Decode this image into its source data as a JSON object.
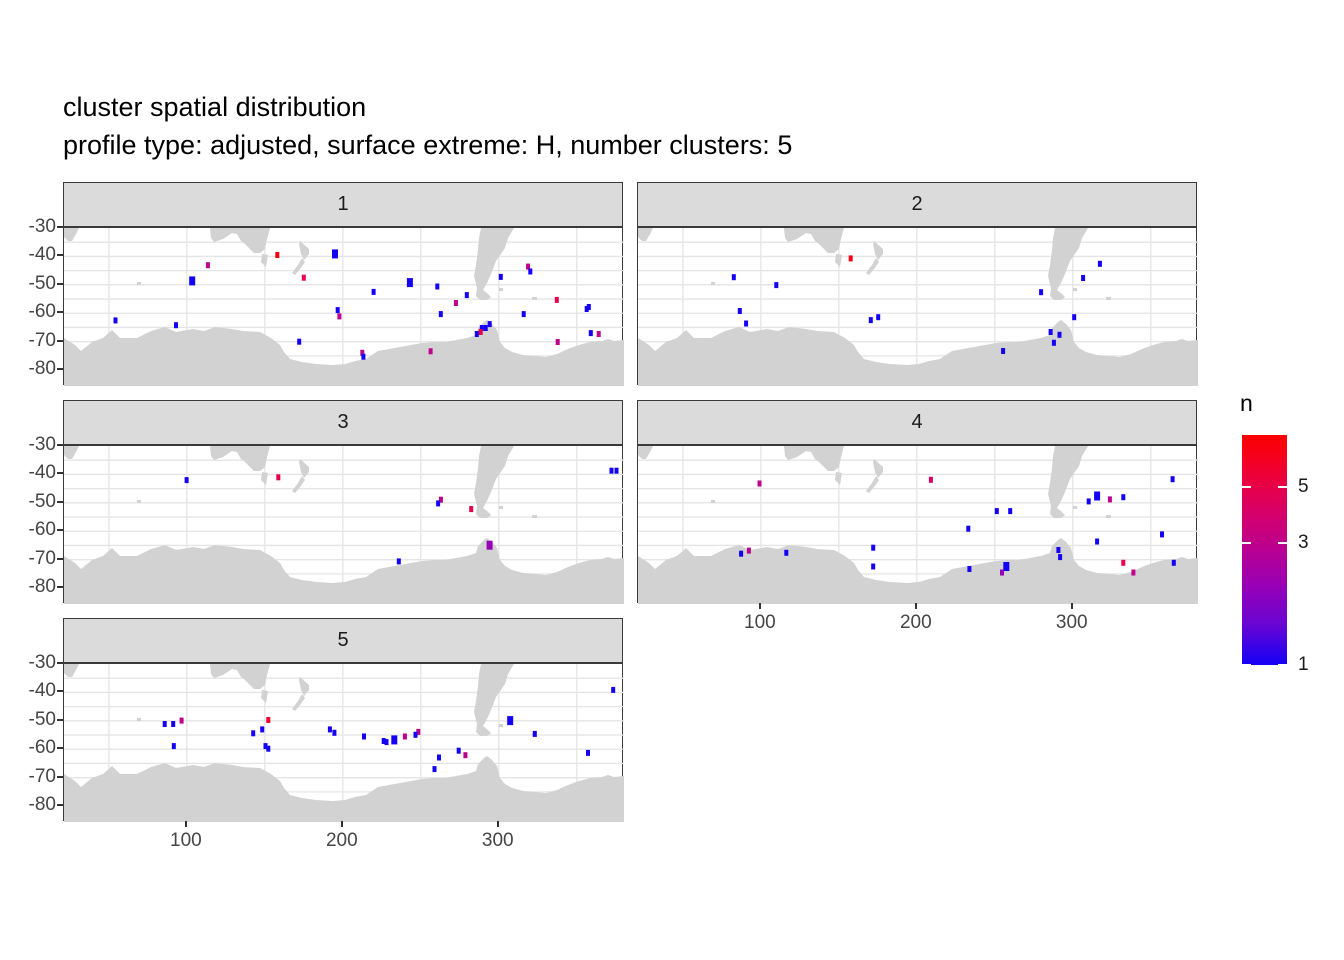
{
  "title": "cluster spatial distribution",
  "subtitle": "profile type: adjusted, surface extreme: H, number clusters: 5",
  "colors": {
    "land": "#D2D2D2",
    "strip_bg": "#DBDBDB",
    "grid": "#E5E5E5",
    "panel_border": "#3a3a3a",
    "axis_text": "#454545",
    "gradient_stops": [
      [
        0,
        "#1400F5"
      ],
      [
        0.18,
        "#6A05D2"
      ],
      [
        0.35,
        "#9900B4"
      ],
      [
        0.5,
        "#B80092"
      ],
      [
        0.65,
        "#D4006C"
      ],
      [
        0.78,
        "#E80048"
      ],
      [
        0.9,
        "#F5001F"
      ],
      [
        1,
        "#FB0000"
      ]
    ]
  },
  "axes": {
    "x": {
      "tick_labels": [
        "100",
        "200",
        "300"
      ],
      "tick_values": [
        100,
        200,
        300
      ],
      "range": [
        21.2,
        380.3
      ],
      "grid_values": [
        50,
        100,
        150,
        200,
        250,
        300,
        350
      ]
    },
    "y": {
      "tick_labels": [
        "-30",
        "-40",
        "-50",
        "-60",
        "-70",
        "-80"
      ],
      "tick_values": [
        -30,
        -40,
        -50,
        -60,
        -70,
        -80
      ],
      "range": [
        -30,
        -85.6
      ],
      "grid_values": [
        -35,
        -40,
        -45,
        -50,
        -55,
        -60,
        -65,
        -70,
        -75,
        -80,
        -85
      ]
    }
  },
  "legend": {
    "title": "n",
    "ticks": [
      {
        "label": "5",
        "value": 5
      },
      {
        "label": "3",
        "value": 3
      },
      {
        "label": "1",
        "value": 1
      }
    ],
    "scale": "log",
    "domain": [
      1,
      8
    ]
  },
  "chart_data": {
    "type": "scatter",
    "note": "faceted map scatter; lon 20-380, lat -30 to -85, point value n colored blue(1) to red",
    "facets": [
      {
        "label": "1",
        "points": [
          [
            158,
            -39.5,
            7
          ],
          [
            195,
            -39.1,
            1,
            2
          ],
          [
            113.5,
            -43.1,
            3
          ],
          [
            175,
            -47.5,
            5
          ],
          [
            103.4,
            -48.6,
            1,
            2
          ],
          [
            243,
            -49.2,
            1,
            2
          ],
          [
            260.6,
            -50.6,
            1
          ],
          [
            219.7,
            -52.5,
            1
          ],
          [
            196.7,
            -58.9,
            1
          ],
          [
            197.8,
            -61.1,
            3
          ],
          [
            54.2,
            -62.5,
            1
          ],
          [
            93,
            -64.2,
            1
          ],
          [
            172,
            -70,
            1
          ],
          [
            212.5,
            -73.9,
            3
          ],
          [
            213.2,
            -75.3,
            1
          ],
          [
            272.5,
            -56.4,
            3
          ],
          [
            262.8,
            -60.3,
            1
          ],
          [
            256.3,
            -73.4,
            3
          ],
          [
            301.3,
            -47.2,
            1
          ],
          [
            279.5,
            -53.6,
            1
          ],
          [
            337.2,
            -55.3,
            5
          ],
          [
            356.4,
            -58.5,
            1
          ],
          [
            357.7,
            -57.8,
            1
          ],
          [
            316,
            -60.3,
            1
          ],
          [
            294.2,
            -63.8,
            1
          ],
          [
            289.1,
            -65.2,
            1
          ],
          [
            291.6,
            -65.2,
            1
          ],
          [
            288.4,
            -66.6,
            5
          ],
          [
            285.9,
            -67.3,
            1
          ],
          [
            359,
            -67,
            1
          ],
          [
            364.1,
            -67.3,
            3
          ],
          [
            337.8,
            -70.1,
            3
          ],
          [
            318.8,
            -43.6,
            3
          ],
          [
            320.2,
            -45.3,
            1
          ]
        ]
      },
      {
        "label": "2",
        "points": [
          [
            82.6,
            -47.3,
            1
          ],
          [
            109.9,
            -50.1,
            1
          ],
          [
            157.6,
            -40.7,
            7
          ],
          [
            86.5,
            -59.2,
            1
          ],
          [
            90.5,
            -63.6,
            1
          ],
          [
            170.5,
            -62.4,
            1
          ],
          [
            175.2,
            -61.4,
            1
          ],
          [
            279.7,
            -52.6,
            1
          ],
          [
            306.6,
            -47.6,
            1
          ],
          [
            317.4,
            -42.6,
            1
          ],
          [
            300.9,
            -61.4,
            1
          ],
          [
            285.8,
            -66.6,
            1
          ],
          [
            291.5,
            -67.6,
            1
          ],
          [
            287.9,
            -70.4,
            1
          ],
          [
            255.3,
            -73.3,
            1
          ]
        ]
      },
      {
        "label": "3",
        "points": [
          [
            99.8,
            -42,
            1
          ],
          [
            158.6,
            -41,
            5
          ],
          [
            262.9,
            -48.9,
            3
          ],
          [
            261.1,
            -50.2,
            1
          ],
          [
            282.3,
            -52.2,
            5
          ],
          [
            294.1,
            -64.9,
            2,
            2
          ],
          [
            235.9,
            -70.6,
            1
          ],
          [
            372.3,
            -38.7,
            1
          ],
          [
            375.5,
            -38.7,
            1
          ]
        ]
      },
      {
        "label": "4",
        "points": [
          [
            99.1,
            -43.2,
            3
          ],
          [
            209,
            -41.9,
            4
          ],
          [
            364,
            -41.7,
            1
          ],
          [
            315.6,
            -47.6,
            1,
            2
          ],
          [
            310.2,
            -49.5,
            1
          ],
          [
            323.8,
            -48.8,
            3
          ],
          [
            332.4,
            -48,
            1
          ],
          [
            251.3,
            -52.9,
            1
          ],
          [
            259.9,
            -52.9,
            1
          ],
          [
            233,
            -59.1,
            1
          ],
          [
            357.2,
            -61.1,
            1
          ],
          [
            315.6,
            -63.6,
            1
          ],
          [
            290.8,
            -66.6,
            1
          ],
          [
            291.9,
            -69.1,
            1
          ],
          [
            172,
            -65.8,
            1
          ],
          [
            172,
            -72.4,
            1
          ],
          [
            92.3,
            -66.8,
            3
          ],
          [
            87.3,
            -67.9,
            1
          ],
          [
            116.3,
            -67.6,
            1
          ],
          [
            233.7,
            -73.3,
            1
          ],
          [
            257.4,
            -72.4,
            1,
            2
          ],
          [
            254.6,
            -74.5,
            2
          ],
          [
            332.4,
            -71.1,
            5
          ],
          [
            338.9,
            -74.5,
            3
          ],
          [
            364.8,
            -71.1,
            1
          ]
        ]
      },
      {
        "label": "5",
        "points": [
          [
            373.4,
            -39.1,
            1
          ],
          [
            85.8,
            -51.1,
            1
          ],
          [
            91.2,
            -51.1,
            1
          ],
          [
            96.6,
            -49.9,
            3
          ],
          [
            152.2,
            -49.7,
            6
          ],
          [
            148.3,
            -53,
            1
          ],
          [
            142.5,
            -54.4,
            1
          ],
          [
            191.7,
            -53,
            1
          ],
          [
            194.6,
            -54.2,
            1
          ],
          [
            213.6,
            -55.5,
            1
          ],
          [
            226.2,
            -57.1,
            1
          ],
          [
            228,
            -57.5,
            1
          ],
          [
            233,
            -56.7,
            1,
            2
          ],
          [
            239.8,
            -55.5,
            3
          ],
          [
            248.4,
            -53.9,
            3
          ],
          [
            246.6,
            -54.9,
            1
          ],
          [
            91.6,
            -58.9,
            1
          ],
          [
            150.4,
            -58.9,
            1
          ],
          [
            152.2,
            -59.8,
            1
          ],
          [
            274.3,
            -60.5,
            1
          ],
          [
            278.6,
            -62.1,
            3
          ],
          [
            261.7,
            -62.9,
            1
          ],
          [
            258.8,
            -67,
            1
          ],
          [
            307.3,
            -49.9,
            1,
            2
          ],
          [
            323.1,
            -54.6,
            1
          ],
          [
            357.2,
            -61.3,
            1
          ]
        ]
      }
    ],
    "map": {
      "antarctica": [
        [
          0,
          110
        ],
        [
          11,
          117
        ],
        [
          17,
          123
        ],
        [
          28,
          114
        ],
        [
          39,
          110
        ],
        [
          48,
          102
        ],
        [
          56,
          110
        ],
        [
          73,
          110
        ],
        [
          87,
          103
        ],
        [
          101,
          99
        ],
        [
          112,
          104
        ],
        [
          129,
          101
        ],
        [
          140,
          103
        ],
        [
          151,
          99
        ],
        [
          168,
          101
        ],
        [
          179,
          103
        ],
        [
          196,
          104
        ],
        [
          207,
          110
        ],
        [
          216,
          117
        ],
        [
          220,
          124
        ],
        [
          226,
          131
        ],
        [
          238,
          134
        ],
        [
          252,
          136
        ],
        [
          269,
          137
        ],
        [
          281,
          136
        ],
        [
          291,
          133
        ],
        [
          302,
          131
        ],
        [
          314,
          123
        ],
        [
          325,
          121
        ],
        [
          336,
          119
        ],
        [
          347,
          117
        ],
        [
          358,
          115
        ],
        [
          370,
          114
        ],
        [
          381,
          114
        ],
        [
          392,
          112
        ],
        [
          403,
          110
        ],
        [
          412,
          107
        ],
        [
          414,
          100
        ],
        [
          420,
          94
        ],
        [
          423,
          92
        ],
        [
          428,
          96
        ],
        [
          433,
          102
        ],
        [
          436,
          114
        ],
        [
          441,
          120
        ],
        [
          448,
          124
        ],
        [
          459,
          127
        ],
        [
          470,
          128
        ],
        [
          482,
          129
        ],
        [
          493,
          126
        ],
        [
          504,
          121
        ],
        [
          515,
          117
        ],
        [
          526,
          114
        ],
        [
          538,
          113
        ],
        [
          544,
          111
        ],
        [
          550,
          113
        ],
        [
          560,
          112
        ],
        [
          560,
          158
        ],
        [
          0,
          158
        ]
      ],
      "africa": [
        [
          0,
          0
        ],
        [
          15,
          0
        ],
        [
          12,
          6
        ],
        [
          8,
          13
        ],
        [
          4,
          13
        ],
        [
          0,
          9
        ]
      ],
      "australia": [
        [
          146,
          0
        ],
        [
          147,
          10
        ],
        [
          150,
          14
        ],
        [
          159,
          11
        ],
        [
          168,
          5
        ],
        [
          173,
          6
        ],
        [
          177,
          13
        ],
        [
          181,
          16
        ],
        [
          185,
          20
        ],
        [
          190,
          25
        ],
        [
          196,
          25
        ],
        [
          201,
          21
        ],
        [
          203,
          11
        ],
        [
          206,
          0
        ]
      ],
      "tasmania": [
        [
          198,
          26
        ],
        [
          204,
          27
        ],
        [
          202,
          39
        ],
        [
          197,
          34
        ]
      ],
      "nz-north": [
        [
          236,
          13
        ],
        [
          245,
          21
        ],
        [
          245,
          26
        ],
        [
          240,
          32
        ],
        [
          237,
          26
        ],
        [
          235,
          16
        ]
      ],
      "nz-south": [
        [
          238,
          30
        ],
        [
          241,
          34
        ],
        [
          236,
          41
        ],
        [
          231,
          47
        ],
        [
          228,
          45
        ],
        [
          234,
          37
        ]
      ],
      "south-america": [
        [
          417,
          0
        ],
        [
          450,
          0
        ],
        [
          444,
          10
        ],
        [
          441,
          20
        ],
        [
          432,
          33
        ],
        [
          427,
          46
        ],
        [
          423,
          55
        ],
        [
          419,
          62
        ],
        [
          424,
          66
        ],
        [
          427,
          69
        ],
        [
          423,
          72
        ],
        [
          416,
          72
        ],
        [
          412,
          68
        ],
        [
          413,
          60
        ],
        [
          410,
          48
        ],
        [
          412,
          37
        ],
        [
          414,
          22
        ],
        [
          415,
          10
        ]
      ],
      "kerguelen": [
        [
          73,
          54
        ],
        [
          77,
          54
        ],
        [
          77,
          57
        ],
        [
          73,
          57
        ]
      ],
      "falkland": [
        [
          435,
          60
        ],
        [
          439,
          60
        ],
        [
          439,
          63
        ],
        [
          435,
          63
        ]
      ],
      "south-georgia": [
        [
          468,
          69
        ],
        [
          473,
          69
        ],
        [
          473,
          72
        ],
        [
          468,
          72
        ]
      ]
    }
  }
}
